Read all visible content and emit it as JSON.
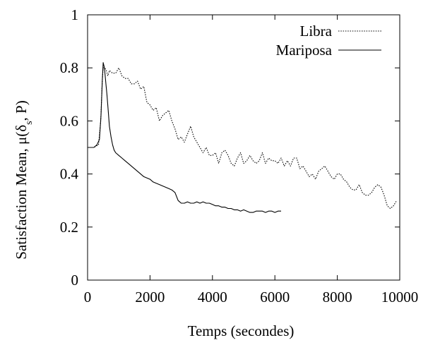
{
  "chart_data": {
    "type": "line",
    "xlabel": "Temps (secondes)",
    "ylabel_main": "Satisfaction Mean, μ(δ",
    "ylabel_sub": "s",
    "ylabel_end": ", P)",
    "xlim": [
      0,
      10000
    ],
    "ylim": [
      0,
      1
    ],
    "xticks": [
      0,
      2000,
      4000,
      6000,
      8000,
      10000
    ],
    "xtick_labels": [
      "0",
      "2000",
      "4000",
      "6000",
      "8000",
      "10000"
    ],
    "yticks": [
      0,
      0.2,
      0.4,
      0.6,
      0.8,
      1
    ],
    "ytick_labels": [
      "0",
      "0.2",
      "0.4",
      "0.6",
      "0.8",
      "1"
    ],
    "grid": false,
    "legend_position": "top-right",
    "series": [
      {
        "name": "Libra",
        "style": "dotted",
        "color": "#000000",
        "x": [
          0,
          200,
          350,
          420,
          470,
          500,
          550,
          600,
          650,
          700,
          800,
          900,
          1000,
          1100,
          1200,
          1300,
          1400,
          1500,
          1600,
          1700,
          1800,
          1900,
          2000,
          2100,
          2200,
          2300,
          2400,
          2500,
          2600,
          2700,
          2800,
          2900,
          3000,
          3100,
          3200,
          3300,
          3400,
          3500,
          3600,
          3700,
          3800,
          3900,
          4000,
          4100,
          4200,
          4300,
          4400,
          4500,
          4600,
          4700,
          4800,
          4900,
          5000,
          5100,
          5200,
          5300,
          5400,
          5500,
          5600,
          5700,
          5800,
          5900,
          6000,
          6100,
          6200,
          6300,
          6400,
          6500,
          6600,
          6700,
          6800,
          6900,
          7000,
          7100,
          7200,
          7300,
          7400,
          7500,
          7600,
          7700,
          7800,
          7900,
          8000,
          8100,
          8200,
          8300,
          8400,
          8500,
          8600,
          8700,
          8800,
          8900,
          9000,
          9100,
          9200,
          9300,
          9400,
          9500,
          9600,
          9700,
          9800,
          9900
        ],
        "y": [
          0.5,
          0.5,
          0.51,
          0.6,
          0.75,
          0.8,
          0.8,
          0.79,
          0.77,
          0.79,
          0.78,
          0.78,
          0.8,
          0.77,
          0.76,
          0.76,
          0.74,
          0.74,
          0.75,
          0.72,
          0.73,
          0.67,
          0.66,
          0.64,
          0.65,
          0.6,
          0.62,
          0.63,
          0.64,
          0.6,
          0.57,
          0.53,
          0.54,
          0.52,
          0.55,
          0.58,
          0.54,
          0.52,
          0.5,
          0.48,
          0.5,
          0.47,
          0.47,
          0.48,
          0.44,
          0.48,
          0.49,
          0.47,
          0.44,
          0.43,
          0.46,
          0.48,
          0.44,
          0.45,
          0.47,
          0.45,
          0.44,
          0.45,
          0.48,
          0.44,
          0.46,
          0.45,
          0.45,
          0.44,
          0.46,
          0.43,
          0.45,
          0.43,
          0.46,
          0.46,
          0.42,
          0.43,
          0.41,
          0.39,
          0.4,
          0.38,
          0.41,
          0.42,
          0.43,
          0.41,
          0.39,
          0.38,
          0.4,
          0.4,
          0.38,
          0.37,
          0.35,
          0.34,
          0.34,
          0.36,
          0.33,
          0.32,
          0.32,
          0.33,
          0.35,
          0.36,
          0.35,
          0.32,
          0.28,
          0.27,
          0.28,
          0.3
        ]
      },
      {
        "name": "Mariposa",
        "style": "solid",
        "color": "#000000",
        "x": [
          0,
          200,
          300,
          380,
          430,
          470,
          500,
          540,
          580,
          620,
          660,
          700,
          750,
          800,
          850,
          900,
          1000,
          1100,
          1200,
          1300,
          1400,
          1500,
          1600,
          1700,
          1800,
          1900,
          2000,
          2100,
          2200,
          2300,
          2400,
          2500,
          2600,
          2700,
          2800,
          2900,
          3000,
          3100,
          3200,
          3300,
          3400,
          3500,
          3600,
          3700,
          3800,
          3900,
          4000,
          4100,
          4200,
          4300,
          4400,
          4500,
          4600,
          4700,
          4800,
          4900,
          5000,
          5100,
          5200,
          5300,
          5400,
          5500,
          5600,
          5700,
          5800,
          5900,
          6000,
          6100,
          6200
        ],
        "y": [
          0.5,
          0.5,
          0.51,
          0.53,
          0.62,
          0.75,
          0.82,
          0.8,
          0.75,
          0.7,
          0.64,
          0.58,
          0.54,
          0.51,
          0.49,
          0.48,
          0.47,
          0.46,
          0.45,
          0.44,
          0.43,
          0.42,
          0.41,
          0.4,
          0.39,
          0.385,
          0.38,
          0.37,
          0.365,
          0.36,
          0.355,
          0.35,
          0.345,
          0.34,
          0.33,
          0.3,
          0.29,
          0.29,
          0.295,
          0.29,
          0.29,
          0.295,
          0.29,
          0.295,
          0.29,
          0.29,
          0.285,
          0.28,
          0.28,
          0.275,
          0.275,
          0.27,
          0.27,
          0.265,
          0.265,
          0.26,
          0.265,
          0.26,
          0.255,
          0.255,
          0.26,
          0.26,
          0.26,
          0.255,
          0.26,
          0.26,
          0.255,
          0.26,
          0.26
        ]
      }
    ]
  }
}
